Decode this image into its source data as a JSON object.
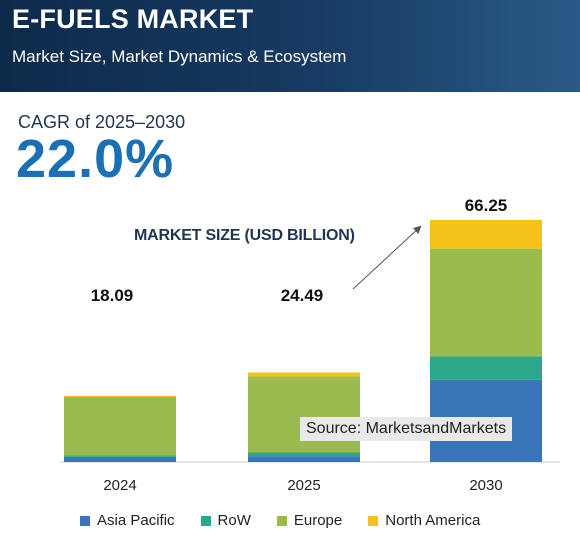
{
  "header": {
    "title": "E-FUELS MARKET",
    "subtitle": "Market Size, Market Dynamics & Ecosystem"
  },
  "cagr": {
    "label": "CAGR of 2025–2030",
    "value": "22.0%"
  },
  "source_note": "Source: MarketsandMarkets",
  "chart_data": {
    "type": "bar",
    "stacked": true,
    "title": "MARKET SIZE (USD BILLION)",
    "categories": [
      "2024",
      "2025",
      "2030"
    ],
    "totals": [
      18.09,
      24.49,
      66.25
    ],
    "total_labels": [
      "18.09",
      "24.49",
      "66.25"
    ],
    "series": [
      {
        "name": "Asia Pacific",
        "color": "#3a75b7",
        "values": [
          1.4,
          1.6,
          22.5
        ]
      },
      {
        "name": "RoW",
        "color": "#2aa889",
        "values": [
          0.4,
          1.0,
          6.4
        ]
      },
      {
        "name": "Europe",
        "color": "#9bbb4e",
        "values": [
          16.0,
          20.8,
          29.5
        ]
      },
      {
        "name": "North America",
        "color": "#f4c21b",
        "values": [
          0.3,
          1.1,
          7.9
        ]
      }
    ],
    "ylim": [
      0,
      66.25
    ],
    "grid": false,
    "legend_position": "bottom"
  }
}
